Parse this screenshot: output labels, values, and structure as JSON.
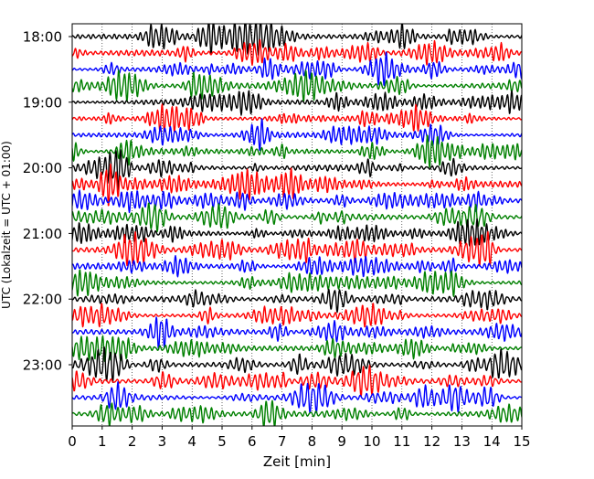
{
  "chart_data": {
    "type": "line",
    "title": "",
    "xlabel": "Zeit  [min]",
    "ylabel": "UTC (Lokalzeit = UTC + 01:00)",
    "xlim": [
      0,
      15
    ],
    "x_ticks": [
      0,
      1,
      2,
      3,
      4,
      5,
      6,
      7,
      8,
      9,
      10,
      11,
      12,
      13,
      14,
      15
    ],
    "x_tick_labels": [
      "0",
      "1",
      "2",
      "3",
      "4",
      "5",
      "6",
      "7",
      "8",
      "9",
      "10",
      "11",
      "12",
      "13",
      "14",
      "15"
    ],
    "y_tick_labels": [
      "18:00",
      "19:00",
      "20:00",
      "21:00",
      "22:00",
      "23:00"
    ],
    "grid": "vertical dotted",
    "legend": "none",
    "trace_colors": [
      "#000000",
      "#ff0000",
      "#0000ff",
      "#008000"
    ],
    "series": [
      {
        "start": "18:00",
        "color": "#000000"
      },
      {
        "start": "18:15",
        "color": "#ff0000"
      },
      {
        "start": "18:30",
        "color": "#0000ff"
      },
      {
        "start": "18:45",
        "color": "#008000"
      },
      {
        "start": "19:00",
        "color": "#000000"
      },
      {
        "start": "19:15",
        "color": "#ff0000"
      },
      {
        "start": "19:30",
        "color": "#0000ff"
      },
      {
        "start": "19:45",
        "color": "#008000"
      },
      {
        "start": "20:00",
        "color": "#000000"
      },
      {
        "start": "20:15",
        "color": "#ff0000"
      },
      {
        "start": "20:30",
        "color": "#0000ff"
      },
      {
        "start": "20:45",
        "color": "#008000"
      },
      {
        "start": "21:00",
        "color": "#000000"
      },
      {
        "start": "21:15",
        "color": "#ff0000"
      },
      {
        "start": "21:30",
        "color": "#0000ff"
      },
      {
        "start": "21:45",
        "color": "#008000"
      },
      {
        "start": "22:00",
        "color": "#000000"
      },
      {
        "start": "22:15",
        "color": "#ff0000"
      },
      {
        "start": "22:30",
        "color": "#0000ff"
      },
      {
        "start": "22:45",
        "color": "#008000"
      },
      {
        "start": "23:00",
        "color": "#000000"
      },
      {
        "start": "23:15",
        "color": "#ff0000"
      },
      {
        "start": "23:30",
        "color": "#0000ff"
      },
      {
        "start": "23:45",
        "color": "#008000"
      }
    ]
  }
}
